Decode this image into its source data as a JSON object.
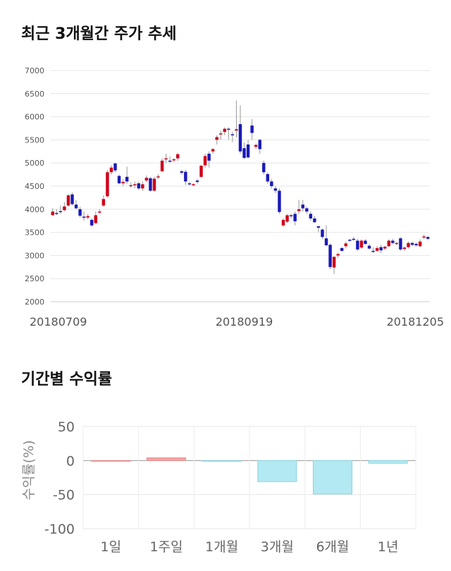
{
  "sections": {
    "price_title": "최근 3개월간 주가 추세",
    "return_title": "기간별 수익률"
  },
  "chart_data": [
    {
      "type": "candlestick",
      "title": "최근 3개월간 주가 추세",
      "ylim": [
        2000,
        7000
      ],
      "yticks": [
        2000,
        2500,
        3000,
        3500,
        4000,
        4500,
        5000,
        5500,
        6000,
        6500,
        7000
      ],
      "x_tick_labels": [
        "20180709",
        "20180919",
        "20181205"
      ],
      "grid": true,
      "up_color": "#d0021b",
      "down_color": "#1a1ab8",
      "candles": [
        [
          3870,
          3950,
          3860,
          4020
        ],
        [
          3920,
          3900,
          3870,
          4000
        ],
        [
          3960,
          3940,
          3900,
          4080
        ],
        [
          3980,
          4060,
          3950,
          4150
        ],
        [
          4080,
          4300,
          4050,
          4330
        ],
        [
          4320,
          4110,
          4080,
          4360
        ],
        [
          4100,
          4020,
          4000,
          4200
        ],
        [
          4000,
          3860,
          3820,
          4050
        ],
        [
          3840,
          3820,
          3750,
          3950
        ],
        [
          3820,
          3850,
          3780,
          3900
        ],
        [
          3770,
          3650,
          3620,
          3800
        ],
        [
          3700,
          3870,
          3680,
          3950
        ],
        [
          3950,
          3950,
          3900,
          4000
        ],
        [
          4080,
          4220,
          4050,
          4300
        ],
        [
          4280,
          4800,
          4250,
          4850
        ],
        [
          4800,
          4900,
          4750,
          4950
        ],
        [
          4990,
          4840,
          4800,
          5010
        ],
        [
          4720,
          4560,
          4540,
          4750
        ],
        [
          4560,
          4590,
          4500,
          4650
        ],
        [
          4700,
          4600,
          4550,
          4920
        ],
        [
          4520,
          4520,
          4470,
          4580
        ],
        [
          4520,
          4540,
          4450,
          4600
        ],
        [
          4560,
          4450,
          4420,
          4600
        ],
        [
          4450,
          4540,
          4400,
          4600
        ],
        [
          4620,
          4680,
          4580,
          4730
        ],
        [
          4670,
          4400,
          4380,
          4700
        ],
        [
          4400,
          4660,
          4380,
          4700
        ],
        [
          4700,
          4710,
          4650,
          4760
        ],
        [
          4820,
          5050,
          4800,
          5100
        ],
        [
          5080,
          5100,
          5000,
          5200
        ],
        [
          5050,
          5040,
          5000,
          5150
        ],
        [
          5060,
          5080,
          5020,
          5100
        ],
        [
          5100,
          5190,
          5050,
          5220
        ],
        [
          4820,
          4790,
          4750,
          4850
        ],
        [
          4810,
          4600,
          4520,
          4850
        ],
        [
          4560,
          4540,
          4510,
          4600
        ],
        [
          4540,
          4540,
          4500,
          4560
        ],
        [
          4620,
          4590,
          4550,
          4650
        ],
        [
          4700,
          4940,
          4680,
          4960
        ],
        [
          4950,
          5150,
          4900,
          5200
        ],
        [
          5200,
          5050,
          4900,
          5250
        ],
        [
          5250,
          5300,
          5200,
          5320
        ],
        [
          5500,
          5560,
          5400,
          5600
        ],
        [
          5620,
          5640,
          5500,
          5700
        ],
        [
          5670,
          5740,
          5600,
          5770
        ],
        [
          5740,
          5720,
          5500,
          5770
        ],
        [
          5620,
          5600,
          5450,
          5680
        ],
        [
          5700,
          5730,
          5550,
          6350
        ],
        [
          5840,
          5250,
          5200,
          6250
        ],
        [
          5320,
          5110,
          5080,
          5450
        ],
        [
          5400,
          5120,
          5100,
          5500
        ],
        [
          5810,
          5650,
          5500,
          5950
        ],
        [
          5350,
          5390,
          5300,
          5420
        ],
        [
          5500,
          5300,
          5200,
          5520
        ],
        [
          5000,
          4800,
          4750,
          5050
        ],
        [
          4760,
          4600,
          4550,
          4800
        ],
        [
          4600,
          4500,
          4450,
          4650
        ],
        [
          4450,
          4400,
          4350,
          4500
        ],
        [
          4400,
          3940,
          3900,
          4450
        ],
        [
          3650,
          3770,
          3620,
          3800
        ],
        [
          3730,
          3870,
          3700,
          3900
        ],
        [
          3870,
          3850,
          3800,
          3900
        ],
        [
          3900,
          3740,
          3650,
          3950
        ],
        [
          3960,
          4000,
          3900,
          4200
        ],
        [
          4100,
          4020,
          3950,
          4200
        ],
        [
          4020,
          3950,
          3900,
          4050
        ],
        [
          3900,
          3800,
          3750,
          3950
        ],
        [
          3800,
          3720,
          3700,
          3850
        ],
        [
          3630,
          3600,
          3500,
          3650
        ],
        [
          3560,
          3400,
          3350,
          3580
        ],
        [
          3370,
          3220,
          3200,
          3650
        ],
        [
          3230,
          2750,
          2700,
          3260
        ],
        [
          2740,
          2970,
          2600,
          2980
        ],
        [
          3000,
          3030,
          2950,
          3060
        ],
        [
          3160,
          3100,
          3080,
          3180
        ],
        [
          3200,
          3260,
          3150,
          3300
        ],
        [
          3340,
          3330,
          3300,
          3360
        ],
        [
          3360,
          3340,
          3320,
          3400
        ],
        [
          3320,
          3130,
          3100,
          3360
        ],
        [
          3170,
          3320,
          3140,
          3350
        ],
        [
          3320,
          3250,
          3230,
          3350
        ],
        [
          3210,
          3150,
          3130,
          3250
        ],
        [
          3100,
          3090,
          3050,
          3180
        ],
        [
          3100,
          3160,
          3080,
          3200
        ],
        [
          3180,
          3110,
          3050,
          3230
        ],
        [
          3150,
          3190,
          3120,
          3210
        ],
        [
          3200,
          3320,
          3180,
          3350
        ],
        [
          3320,
          3270,
          3240,
          3360
        ],
        [
          3260,
          3270,
          3220,
          3300
        ],
        [
          3370,
          3130,
          3100,
          3400
        ],
        [
          3140,
          3170,
          3100,
          3200
        ],
        [
          3180,
          3270,
          3150,
          3300
        ],
        [
          3270,
          3230,
          3200,
          3300
        ],
        [
          3250,
          3220,
          3190,
          3280
        ],
        [
          3200,
          3300,
          3180,
          3350
        ],
        [
          3390,
          3410,
          3350,
          3450
        ],
        [
          3400,
          3360,
          3330,
          3420
        ]
      ]
    },
    {
      "type": "bar",
      "title": "기간별 수익률",
      "ylabel": "수익률(%)",
      "ylim": [
        -100,
        50
      ],
      "yticks": [
        50,
        0,
        -50,
        -100
      ],
      "categories": [
        "1일",
        "1주일",
        "1개월",
        "3개월",
        "6개월",
        "1년"
      ],
      "values": [
        0,
        4,
        -1,
        -31,
        -49,
        -4
      ],
      "positive_color": "#f4a6a6",
      "negative_color": "#b2e9f2"
    }
  ]
}
